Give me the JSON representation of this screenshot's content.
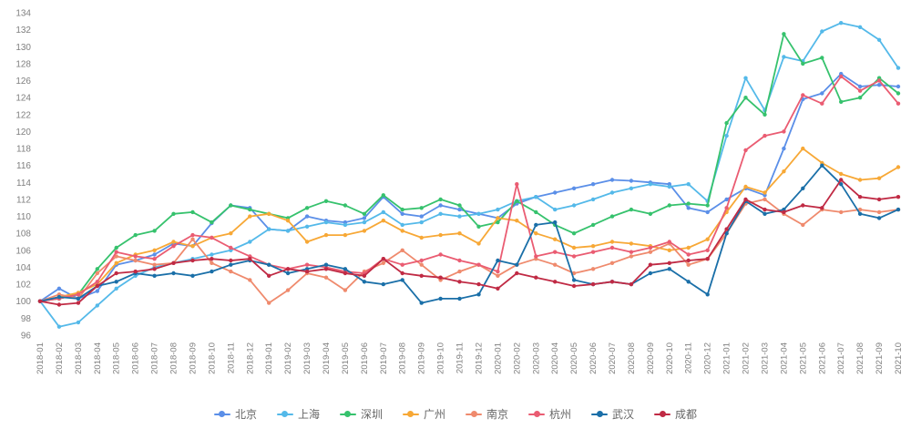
{
  "page": {
    "background": "#ffffff"
  },
  "chart_data": {
    "type": "line",
    "title": "",
    "xlabel": "",
    "ylabel": "",
    "ylim": [
      96,
      134
    ],
    "ytick_step": 2,
    "grid": false,
    "x_labels_rotated": true,
    "legend_position": "bottom",
    "axis_label_color": "#7f7f7f",
    "categories": [
      "2018-01",
      "2018-02",
      "2018-03",
      "2018-04",
      "2018-05",
      "2018-06",
      "2018-07",
      "2018-08",
      "2018-09",
      "2018-10",
      "2018-11",
      "2018-12",
      "2019-01",
      "2019-02",
      "2019-03",
      "2019-04",
      "2019-05",
      "2019-06",
      "2019-07",
      "2019-08",
      "2019-09",
      "2019-10",
      "2019-11",
      "2019-12",
      "2020-01",
      "2020-02",
      "2020-03",
      "2020-04",
      "2020-05",
      "2020-06",
      "2020-07",
      "2020-08",
      "2020-09",
      "2020-10",
      "2020-11",
      "2020-12",
      "2021-01",
      "2021-02",
      "2021-03",
      "2021-04",
      "2021-05",
      "2021-06",
      "2021-07",
      "2021-08",
      "2021-09",
      "2021-10"
    ],
    "series": [
      {
        "id": "beijing",
        "name": "北京",
        "color": "#5b8fe8",
        "values": [
          100,
          101.5,
          100.3,
          101.2,
          104.3,
          104.8,
          105.5,
          106.8,
          106.5,
          109.2,
          111.3,
          111.0,
          108.5,
          108.3,
          110.0,
          109.5,
          109.3,
          109.8,
          112.3,
          110.3,
          110.0,
          111.3,
          110.8,
          110.3,
          109.8,
          111.5,
          112.3,
          112.8,
          113.3,
          113.8,
          114.3,
          114.2,
          114.0,
          113.8,
          111.0,
          110.5,
          112.0,
          113.3,
          112.5,
          118.0,
          123.8,
          124.5,
          126.8,
          125.3,
          125.5,
          125.3
        ]
      },
      {
        "id": "shanghai",
        "name": "上海",
        "color": "#54b9e9",
        "values": [
          100,
          97.0,
          97.5,
          99.5,
          101.5,
          103.0,
          104.0,
          104.5,
          105.0,
          105.5,
          106.0,
          107.0,
          108.5,
          108.3,
          108.8,
          109.3,
          109.0,
          109.3,
          110.5,
          109.0,
          109.3,
          110.3,
          110.0,
          110.3,
          110.8,
          111.8,
          112.3,
          110.8,
          111.3,
          112.0,
          112.8,
          113.3,
          113.8,
          113.5,
          113.8,
          111.8,
          119.5,
          126.3,
          122.5,
          128.8,
          128.3,
          131.8,
          132.8,
          132.3,
          130.8,
          127.5
        ]
      },
      {
        "id": "shenzhen",
        "name": "深圳",
        "color": "#36c26d",
        "values": [
          100,
          100.3,
          100.8,
          103.8,
          106.3,
          107.8,
          108.3,
          110.3,
          110.5,
          109.3,
          111.3,
          110.8,
          110.3,
          109.8,
          111.0,
          111.8,
          111.3,
          110.3,
          112.5,
          110.8,
          111.0,
          112.0,
          111.3,
          108.8,
          109.3,
          111.8,
          110.5,
          109.0,
          108.0,
          109.0,
          110.0,
          110.8,
          110.3,
          111.3,
          111.5,
          111.3,
          121.0,
          124.0,
          122.0,
          131.5,
          128.0,
          128.7,
          123.5,
          124.0,
          126.3,
          124.5
        ]
      },
      {
        "id": "guangzhou",
        "name": "广州",
        "color": "#f7a836",
        "values": [
          100,
          100.5,
          101.0,
          102.0,
          104.5,
          105.5,
          106.0,
          107.0,
          106.5,
          107.5,
          108.0,
          110.0,
          110.3,
          109.5,
          107.0,
          107.8,
          107.8,
          108.3,
          109.5,
          108.3,
          107.5,
          107.8,
          108.0,
          106.8,
          109.8,
          109.5,
          108.0,
          107.3,
          106.3,
          106.5,
          107.0,
          106.8,
          106.5,
          106.0,
          106.3,
          107.3,
          110.5,
          113.5,
          112.8,
          115.3,
          118.0,
          116.3,
          115.0,
          114.3,
          114.5,
          115.8
        ]
      },
      {
        "id": "nanjing",
        "name": "南京",
        "color": "#ef8a6d",
        "values": [
          100,
          100.8,
          100.3,
          103.3,
          105.3,
          104.8,
          104.3,
          104.5,
          107.3,
          104.5,
          103.5,
          102.5,
          99.8,
          101.3,
          103.3,
          102.8,
          101.3,
          103.5,
          104.5,
          106.0,
          104.3,
          102.5,
          103.5,
          104.3,
          103.0,
          104.3,
          105.0,
          104.3,
          103.3,
          103.8,
          104.5,
          105.3,
          105.8,
          106.8,
          104.3,
          105.0,
          108.0,
          111.5,
          112.0,
          110.3,
          109.0,
          110.8,
          110.5,
          110.8,
          110.5,
          110.8
        ]
      },
      {
        "id": "hangzhou",
        "name": "杭州",
        "color": "#ea5c72",
        "values": [
          100,
          100.3,
          100.8,
          102.3,
          105.8,
          105.3,
          105.0,
          106.5,
          107.8,
          107.5,
          106.3,
          105.3,
          104.3,
          103.8,
          104.3,
          104.0,
          103.5,
          103.3,
          105.0,
          104.3,
          104.8,
          105.5,
          104.8,
          104.3,
          103.5,
          113.8,
          105.3,
          105.8,
          105.3,
          105.8,
          106.3,
          105.8,
          106.3,
          107.0,
          105.5,
          106.0,
          111.0,
          117.8,
          119.5,
          120.0,
          124.3,
          123.3,
          126.5,
          124.8,
          126.0,
          123.3
        ]
      },
      {
        "id": "wuhan",
        "name": "武汉",
        "color": "#1a6fa8",
        "values": [
          100,
          100.5,
          100.3,
          101.8,
          102.3,
          103.3,
          103.0,
          103.3,
          103.0,
          103.5,
          104.3,
          104.8,
          104.3,
          103.3,
          103.8,
          104.3,
          103.8,
          102.3,
          102.0,
          102.5,
          99.8,
          100.3,
          100.3,
          100.8,
          104.8,
          104.3,
          109.0,
          109.3,
          102.5,
          102.0,
          102.3,
          102.0,
          103.3,
          103.8,
          102.3,
          100.8,
          108.0,
          111.8,
          110.3,
          110.8,
          113.3,
          116.0,
          113.8,
          110.3,
          109.8,
          110.8
        ]
      },
      {
        "id": "chengdu",
        "name": "成都",
        "color": "#c02a44",
        "values": [
          100,
          99.6,
          99.8,
          101.8,
          103.3,
          103.5,
          103.8,
          104.5,
          104.8,
          105.0,
          104.8,
          105.0,
          103.0,
          103.8,
          103.5,
          103.8,
          103.3,
          103.0,
          105.0,
          103.3,
          103.0,
          102.8,
          102.3,
          102.0,
          101.5,
          103.3,
          102.8,
          102.3,
          101.8,
          102.0,
          102.3,
          102.0,
          104.3,
          104.5,
          104.8,
          105.0,
          108.5,
          112.0,
          110.8,
          110.5,
          111.3,
          111.0,
          114.3,
          112.3,
          112.0,
          112.3
        ]
      }
    ]
  }
}
